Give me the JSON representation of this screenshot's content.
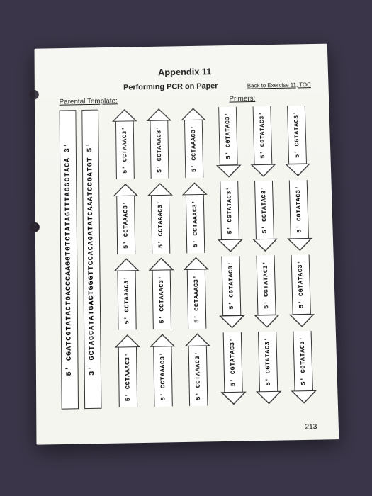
{
  "title": "Appendix 11",
  "subtitle": "Performing PCR on Paper",
  "backlink": "Back to Exercise 11, TOC",
  "label_parental": "Parental Template:",
  "label_primers": "Primers:",
  "template_strands": [
    "5' CGATCGTATACTGACCCAAGGTGTCTATAGTTTAGGCTACA 3'",
    "3' GCTAGCATATGACTGGGTTCCACAGATATCAAATCCGATGT 5'"
  ],
  "primer_forward": "5' CCTAAAC3'",
  "primer_reverse": "5' CGTATAC3'",
  "primer_layout": [
    [
      "up",
      "up",
      "up",
      "up"
    ],
    [
      "up",
      "up",
      "up",
      "up"
    ],
    [
      "up",
      "up",
      "up",
      "up"
    ],
    [
      "down",
      "down",
      "down",
      "down"
    ],
    [
      "down",
      "down",
      "down",
      "down"
    ],
    [
      "down",
      "down",
      "down",
      "down"
    ]
  ],
  "pagenum": "213",
  "colors": {
    "bg": "#3a3548",
    "paper": "#f5f5f0",
    "ink": "#333333"
  }
}
